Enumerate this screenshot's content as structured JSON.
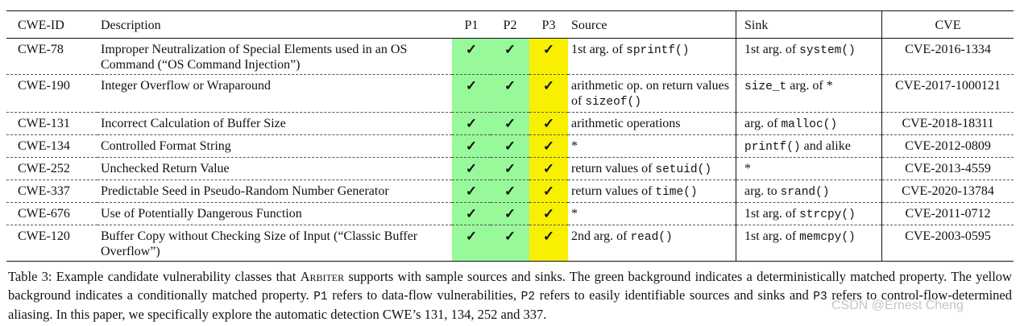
{
  "table": {
    "headers": {
      "id": "CWE-ID",
      "description": "Description",
      "p1": "P1",
      "p2": "P2",
      "p3": "P3",
      "source": "Source",
      "sink": "Sink",
      "cve": "CVE"
    },
    "colors": {
      "green": "#98f99a",
      "yellow": "#f8f000"
    },
    "check": "✓",
    "rows": [
      {
        "id": "CWE-78",
        "description": "Improper Neutralization of Special Elements used in an OS Command (“OS Command Injection”)",
        "source": [
          {
            "t": "1st arg. of "
          },
          {
            "t": "sprintf()",
            "code": true
          }
        ],
        "sink": [
          {
            "t": "1st arg. of "
          },
          {
            "t": "system()",
            "code": true
          }
        ],
        "cve": "CVE-2016-1334"
      },
      {
        "id": "CWE-190",
        "description": "Integer Overflow or Wraparound",
        "source": [
          {
            "t": "arithmetic op. on return values of "
          },
          {
            "t": "sizeof()",
            "code": true
          }
        ],
        "sink": [
          {
            "t": "size_t",
            "code": true
          },
          {
            "t": " arg. of *"
          }
        ],
        "cve": "CVE-2017-1000121"
      },
      {
        "id": "CWE-131",
        "description": "Incorrect Calculation of Buffer Size",
        "source": [
          {
            "t": "arithmetic operations"
          }
        ],
        "sink": [
          {
            "t": "arg. of "
          },
          {
            "t": "malloc()",
            "code": true
          }
        ],
        "cve": "CVE-2018-18311"
      },
      {
        "id": "CWE-134",
        "description": "Controlled Format String",
        "source": [
          {
            "t": "*"
          }
        ],
        "sink": [
          {
            "t": "printf()",
            "code": true
          },
          {
            "t": " and alike"
          }
        ],
        "cve": "CVE-2012-0809"
      },
      {
        "id": "CWE-252",
        "description": "Unchecked Return Value",
        "source": [
          {
            "t": "return values of "
          },
          {
            "t": "setuid()",
            "code": true
          }
        ],
        "sink": [
          {
            "t": "*"
          }
        ],
        "cve": "CVE-2013-4559"
      },
      {
        "id": "CWE-337",
        "description": "Predictable Seed in Pseudo-Random Number Generator",
        "source": [
          {
            "t": "return values of "
          },
          {
            "t": "time()",
            "code": true
          }
        ],
        "sink": [
          {
            "t": "arg. to "
          },
          {
            "t": "srand()",
            "code": true
          }
        ],
        "cve": "CVE-2020-13784"
      },
      {
        "id": "CWE-676",
        "description": "Use of Potentially Dangerous Function",
        "source": [
          {
            "t": "*"
          }
        ],
        "sink": [
          {
            "t": "1st arg. of "
          },
          {
            "t": "strcpy()",
            "code": true
          }
        ],
        "cve": "CVE-2011-0712"
      },
      {
        "id": "CWE-120",
        "description": "Buffer Copy without Checking Size of Input (“Classic Buffer Overflow”)",
        "source": [
          {
            "t": "2nd arg. of "
          },
          {
            "t": "read()",
            "code": true
          }
        ],
        "sink": [
          {
            "t": "1st arg. of "
          },
          {
            "t": "memcpy()",
            "code": true
          }
        ],
        "cve": "CVE-2003-0595"
      }
    ]
  },
  "caption": [
    {
      "t": "Table 3: Example candidate vulnerability classes that "
    },
    {
      "t": "Arbiter",
      "sc": true
    },
    {
      "t": " supports with sample sources and sinks. The green background indicates a deterministically matched property. The yellow background indicates a conditionally matched property. "
    },
    {
      "t": "P1",
      "code": true
    },
    {
      "t": " refers to data-flow vulnerabilities, "
    },
    {
      "t": "P2",
      "code": true
    },
    {
      "t": " refers to easily identifiable sources and sinks and "
    },
    {
      "t": "P3",
      "code": true
    },
    {
      "t": " refers to control-flow-determined aliasing. In this paper, we specifically explore the automatic detection CWE’s 131, 134, 252 and 337."
    }
  ],
  "watermark": "CSDN @Ernest Cheng"
}
